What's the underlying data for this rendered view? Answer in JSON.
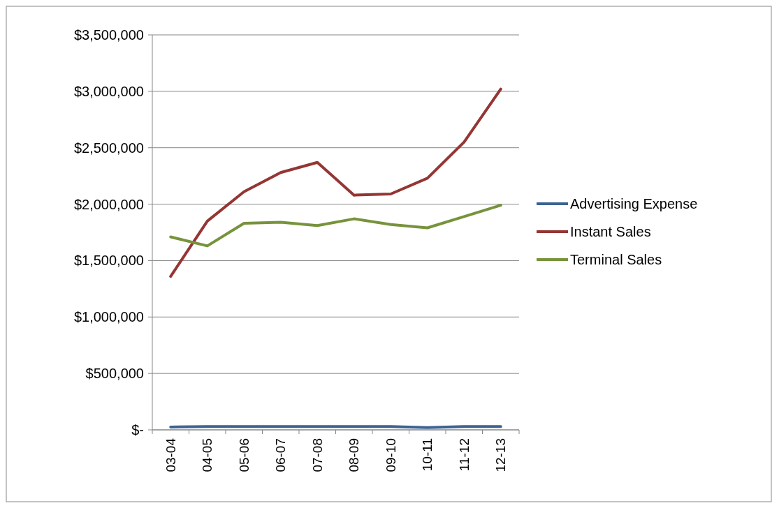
{
  "chart_data": {
    "type": "line",
    "categories": [
      "03-04",
      "04-05",
      "05-06",
      "06-07",
      "07-08",
      "08-09",
      "09-10",
      "10-11",
      "11-12",
      "12-13"
    ],
    "series": [
      {
        "name": "Advertising Expense",
        "color": "#3c6390",
        "values": [
          25000,
          30000,
          30000,
          30000,
          30000,
          30000,
          30000,
          20000,
          30000,
          30000
        ]
      },
      {
        "name": "Instant Sales",
        "color": "#943634",
        "values": [
          1360000,
          1850000,
          2110000,
          2280000,
          2370000,
          2080000,
          2090000,
          2230000,
          2550000,
          3020000
        ]
      },
      {
        "name": "Terminal Sales",
        "color": "#77933c",
        "values": [
          1710000,
          1630000,
          1830000,
          1840000,
          1810000,
          1870000,
          1820000,
          1790000,
          1890000,
          1990000
        ]
      }
    ],
    "ylim": [
      0,
      3500000
    ],
    "yticks": [
      {
        "value": 0,
        "label": "$-"
      },
      {
        "value": 500000,
        "label": "$500,000"
      },
      {
        "value": 1000000,
        "label": "$1,000,000"
      },
      {
        "value": 1500000,
        "label": "$1,500,000"
      },
      {
        "value": 2000000,
        "label": "$2,000,000"
      },
      {
        "value": 2500000,
        "label": "$2,500,000"
      },
      {
        "value": 3000000,
        "label": "$3,000,000"
      },
      {
        "value": 3500000,
        "label": "$3,500,000"
      }
    ],
    "grid": "y",
    "legend": "right",
    "marker": "none",
    "line_style": "solid"
  }
}
